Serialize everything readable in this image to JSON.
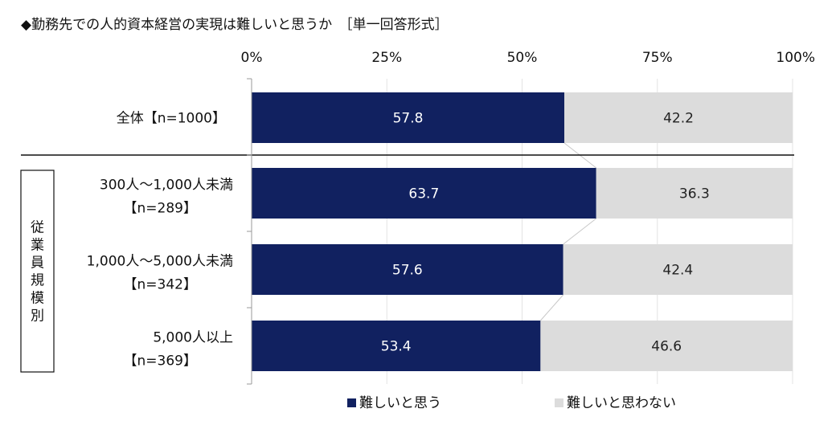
{
  "chart_data": {
    "type": "bar",
    "orientation": "horizontal",
    "stacked": "percent",
    "title": "◆勤務先での人的資本経営の実現は難しいと思うか　［単一回答形式］",
    "x_ticks": [
      "0%",
      "25%",
      "50%",
      "75%",
      "100%"
    ],
    "xlim": [
      0,
      100
    ],
    "categories": [
      {
        "line1": "全体【n=1000】",
        "line2": ""
      },
      {
        "line1": "300人～1,000人未満",
        "line2": "【n=289】"
      },
      {
        "line1": "1,000人～5,000人未満",
        "line2": "【n=342】"
      },
      {
        "line1": "5,000人以上",
        "line2": "【n=369】"
      }
    ],
    "group_label": "従業員規模別",
    "series": [
      {
        "name": "難しいと思う",
        "color": "#112160",
        "values": [
          57.8,
          63.7,
          57.6,
          53.4
        ]
      },
      {
        "name": "難しいと思わない",
        "color": "#dcdcdc",
        "values": [
          42.2,
          36.3,
          42.4,
          46.6
        ]
      }
    ],
    "legend_position": "bottom",
    "grid": true
  }
}
